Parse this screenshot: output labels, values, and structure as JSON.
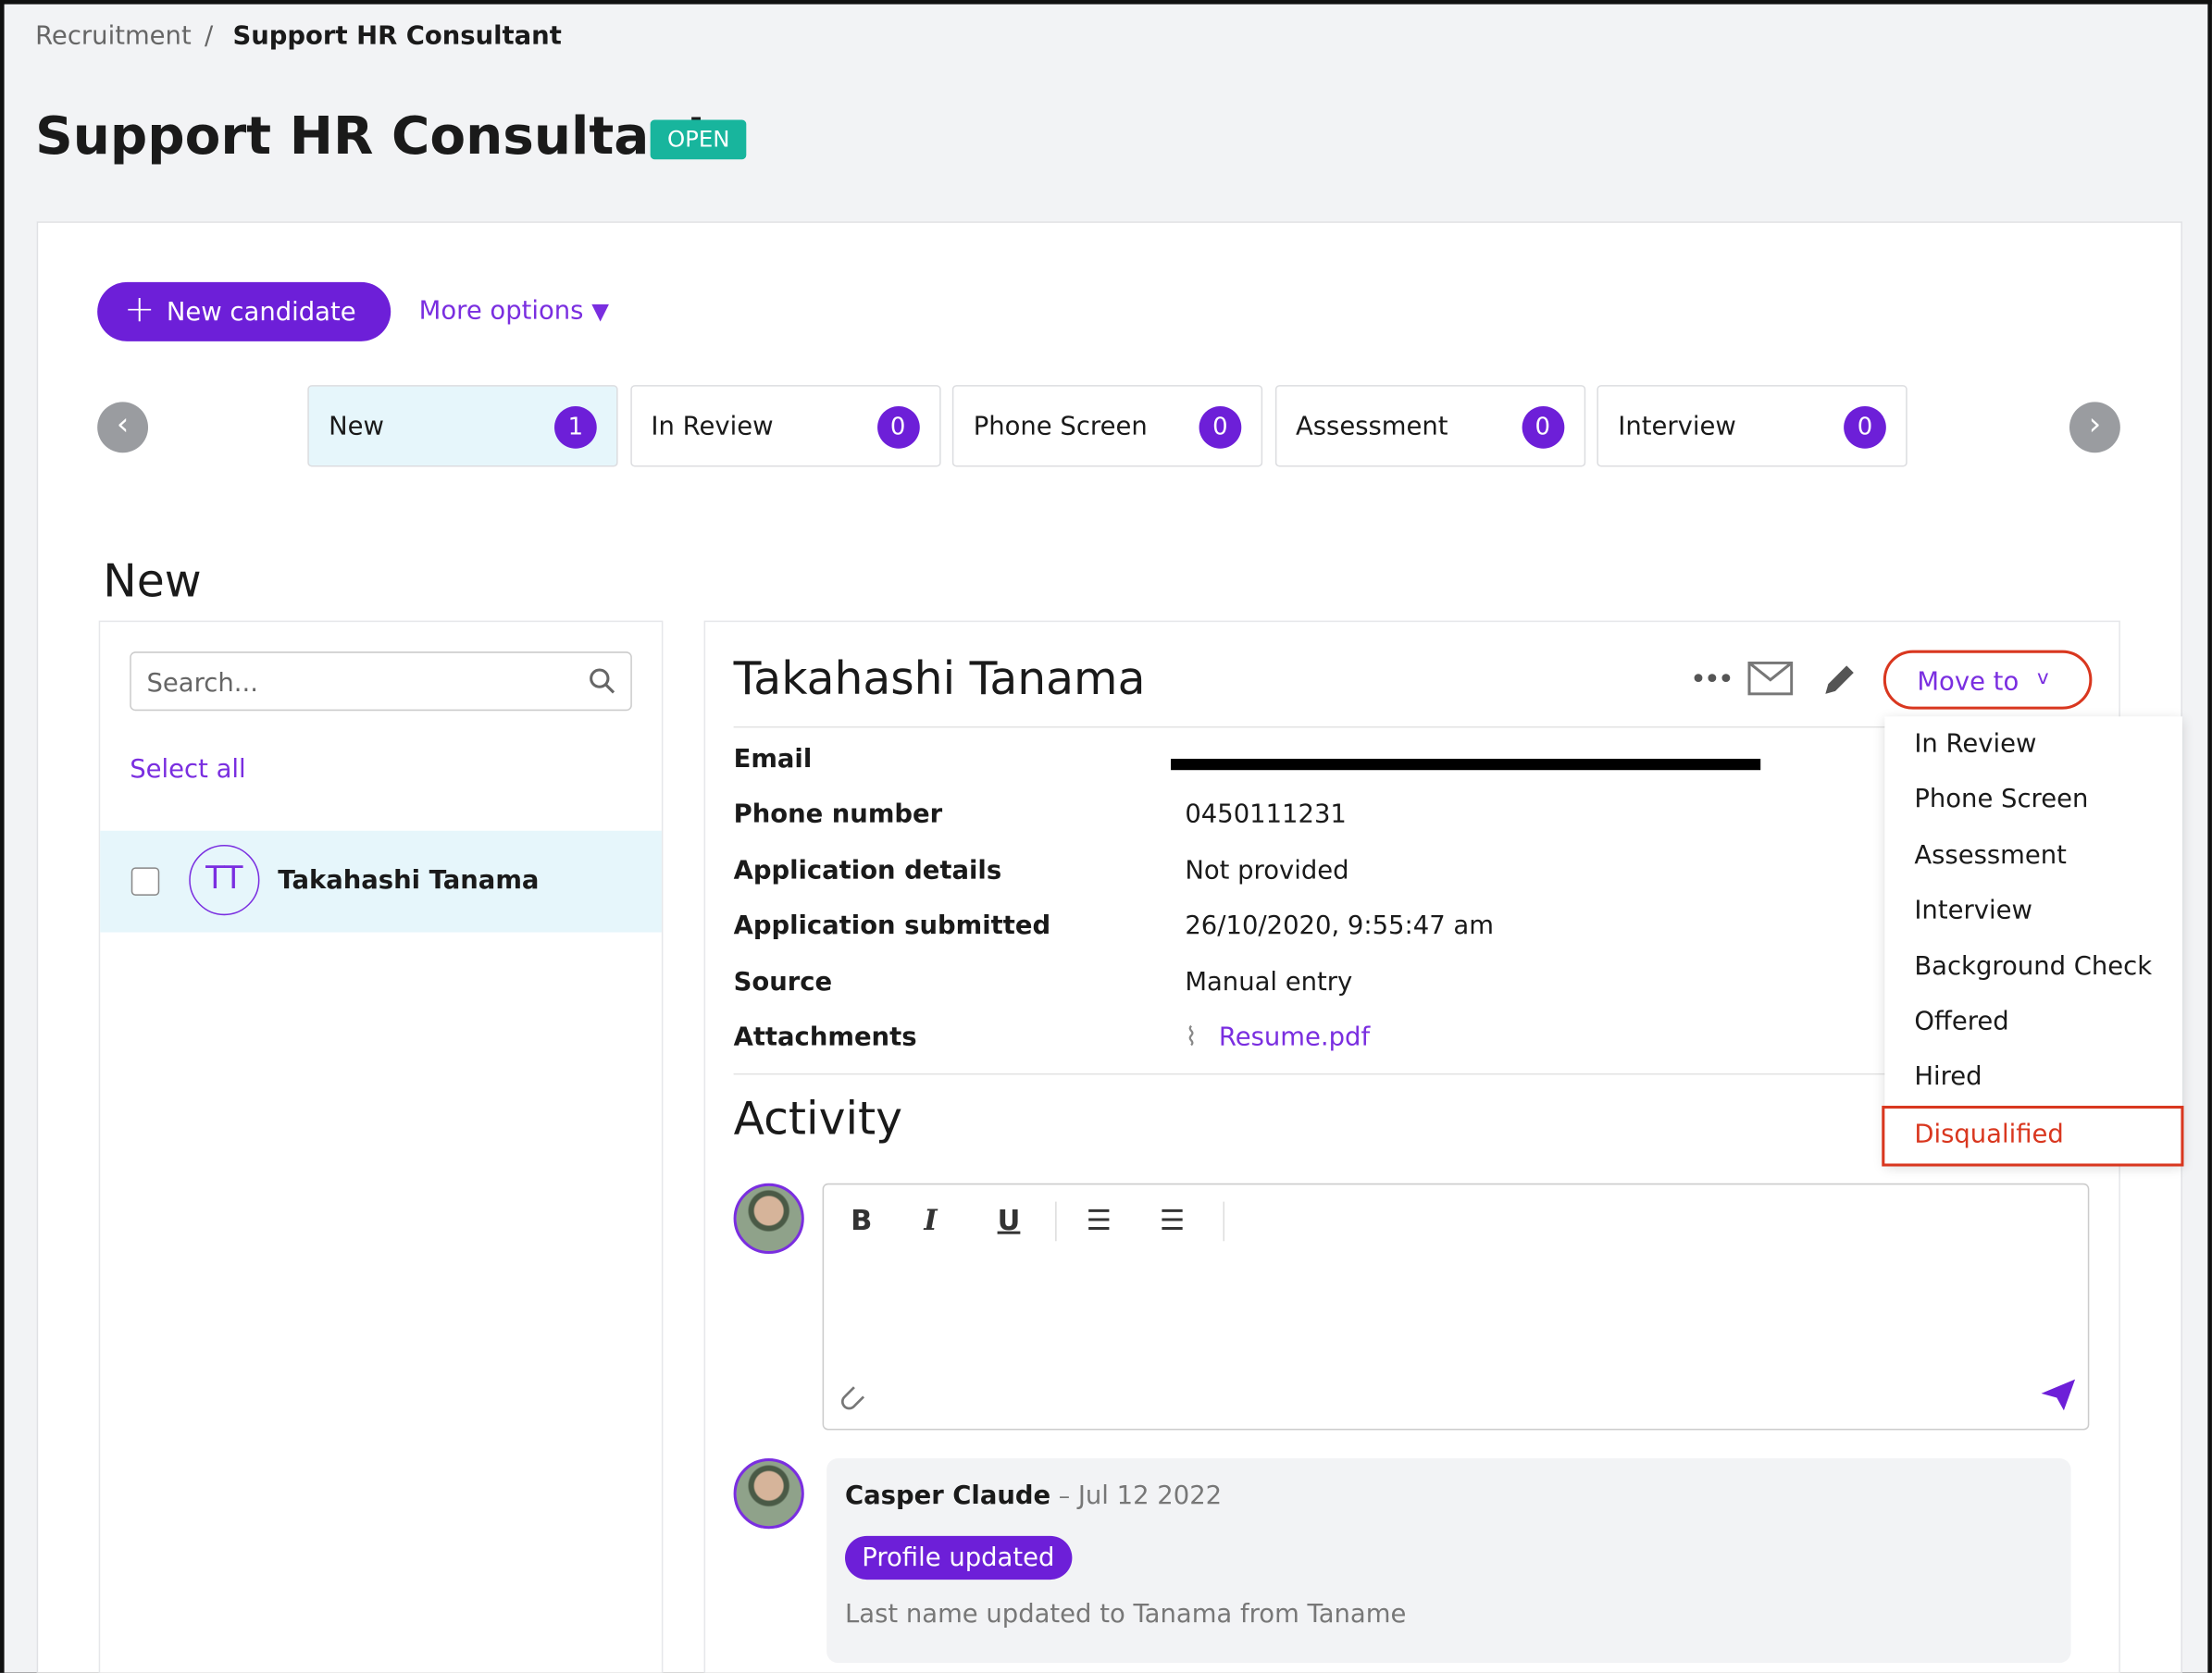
{
  "breadcrumb": {
    "parent": "Recruitment",
    "separator": "/",
    "current": "Support HR Consultant"
  },
  "header": {
    "title": "Support HR Consultant",
    "status": "OPEN"
  },
  "toolbar": {
    "new_candidate": "New candidate",
    "more_options": "More options"
  },
  "stages": [
    {
      "name": "New",
      "count": 1
    },
    {
      "name": "In Review",
      "count": 0
    },
    {
      "name": "Phone Screen",
      "count": 0
    },
    {
      "name": "Assessment",
      "count": 0
    },
    {
      "name": "Interview",
      "count": 0
    }
  ],
  "section_title": "New",
  "list": {
    "search_placeholder": "Search...",
    "select_all": "Select all",
    "candidates": [
      {
        "initials": "TT",
        "name": "Takahashi Tanama"
      }
    ]
  },
  "detail": {
    "name": "Takahashi Tanama",
    "move_to": "Move to",
    "fields": [
      {
        "label": "Email",
        "value": ""
      },
      {
        "label": "Phone number",
        "value": "0450111231"
      },
      {
        "label": "Application details",
        "value": "Not provided"
      },
      {
        "label": "Application submitted",
        "value": "26/10/2020, 9:55:47 am"
      },
      {
        "label": "Source",
        "value": "Manual entry"
      },
      {
        "label": "Attachments",
        "value": "Resume.pdf"
      }
    ],
    "move_menu": [
      "In Review",
      "Phone Screen",
      "Assessment",
      "Interview",
      "Background Check",
      "Offered",
      "Hired",
      "Disqualified"
    ]
  },
  "activity": {
    "title": "Activity",
    "entries": [
      {
        "author": "Casper Claude",
        "separator": "–",
        "date": "Jul 12 2022",
        "tag": "Profile updated",
        "text": "Last name updated to Tanama from Taname"
      }
    ]
  }
}
